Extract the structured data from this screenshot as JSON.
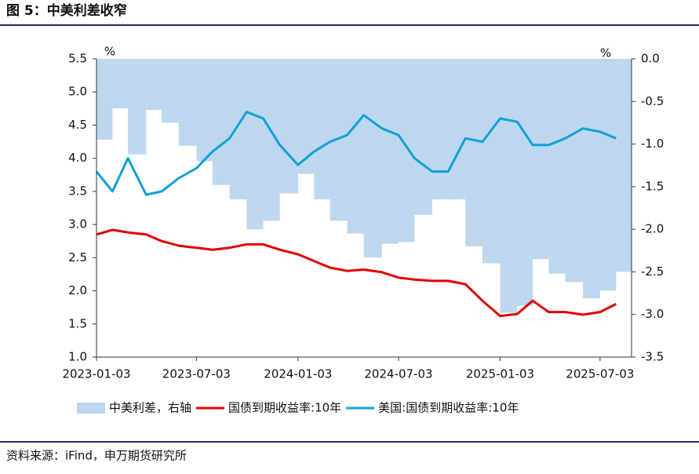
{
  "chart_data": {
    "type": "line",
    "title": "图 5：中美利差收窄",
    "source": "资料来源：iFind，申万期货研究所",
    "y_unit": "%",
    "y2_unit": "%",
    "x": [
      "2023-01-03",
      "2023-02-01",
      "2023-03-01",
      "2023-04-03",
      "2023-05-01",
      "2023-06-01",
      "2023-07-03",
      "2023-08-01",
      "2023-09-01",
      "2023-10-02",
      "2023-11-01",
      "2023-12-01",
      "2024-01-03",
      "2024-02-01",
      "2024-03-01",
      "2024-04-01",
      "2024-05-01",
      "2024-06-03",
      "2024-07-03",
      "2024-08-01",
      "2024-09-02",
      "2024-10-01",
      "2024-11-01",
      "2024-12-02",
      "2025-01-03",
      "2025-02-03",
      "2025-03-03",
      "2025-04-01",
      "2025-05-01",
      "2025-06-02",
      "2025-07-03",
      "2025-08-01"
    ],
    "xlim": [
      "2023-01-03",
      "2025-08-29"
    ],
    "xticks": [
      "2023-01-03",
      "2023-07-03",
      "2024-01-03",
      "2024-07-03",
      "2025-01-03",
      "2025-07-03"
    ],
    "ylim": [
      1.0,
      5.5
    ],
    "yticks": [
      {
        "value": 1,
        "label": "1.0"
      },
      1.5,
      {
        "value": 2,
        "label": "2.0"
      },
      2.5,
      {
        "value": 3,
        "label": "3.0"
      },
      3.5,
      {
        "value": 4,
        "label": "4.0"
      },
      4.5,
      {
        "value": 5,
        "label": "5.0"
      },
      5.5
    ],
    "y2lim": [
      -3.5,
      0.0
    ],
    "y2ticks": [
      -3.5,
      {
        "value": -3,
        "label": "-3.0"
      },
      -2.5,
      {
        "value": -2,
        "label": "-2.0"
      },
      -1.5,
      {
        "value": -1,
        "label": "-1.0"
      },
      -0.5,
      {
        "value": 0,
        "label": "0.0"
      }
    ],
    "series": [
      {
        "name": "中美利差，右轴",
        "type": "bar",
        "axis": "y2",
        "color": "#bdd7ee",
        "values": [
          -0.95,
          -0.58,
          -1.12,
          -0.6,
          -0.75,
          -1.02,
          -1.2,
          -1.48,
          -1.65,
          -2.0,
          -1.9,
          -1.58,
          -1.35,
          -1.65,
          -1.9,
          -2.05,
          -2.33,
          -2.17,
          -2.15,
          -1.83,
          -1.65,
          -1.65,
          -2.2,
          -2.4,
          -2.98,
          -2.9,
          -2.35,
          -2.52,
          -2.62,
          -2.81,
          -2.72,
          -2.5
        ]
      },
      {
        "name": "国债到期收益率:10年",
        "type": "line",
        "color": "#e00000",
        "values": [
          2.85,
          2.92,
          2.88,
          2.85,
          2.75,
          2.68,
          2.65,
          2.62,
          2.65,
          2.7,
          2.7,
          2.62,
          2.55,
          2.45,
          2.35,
          2.3,
          2.32,
          2.28,
          2.2,
          2.17,
          2.15,
          2.15,
          2.1,
          1.85,
          1.62,
          1.65,
          1.85,
          1.68,
          1.68,
          1.64,
          1.68,
          1.8
        ]
      },
      {
        "name": "美国:国债到期收益率:10年",
        "type": "line",
        "color": "#10a0d8",
        "values": [
          3.8,
          3.5,
          4.0,
          3.45,
          3.5,
          3.7,
          3.85,
          4.1,
          4.3,
          4.7,
          4.6,
          4.2,
          3.9,
          4.1,
          4.25,
          4.35,
          4.65,
          4.45,
          4.35,
          4.0,
          3.8,
          3.8,
          4.3,
          4.25,
          4.6,
          4.55,
          4.2,
          4.2,
          4.3,
          4.45,
          4.4,
          4.3
        ]
      }
    ]
  }
}
